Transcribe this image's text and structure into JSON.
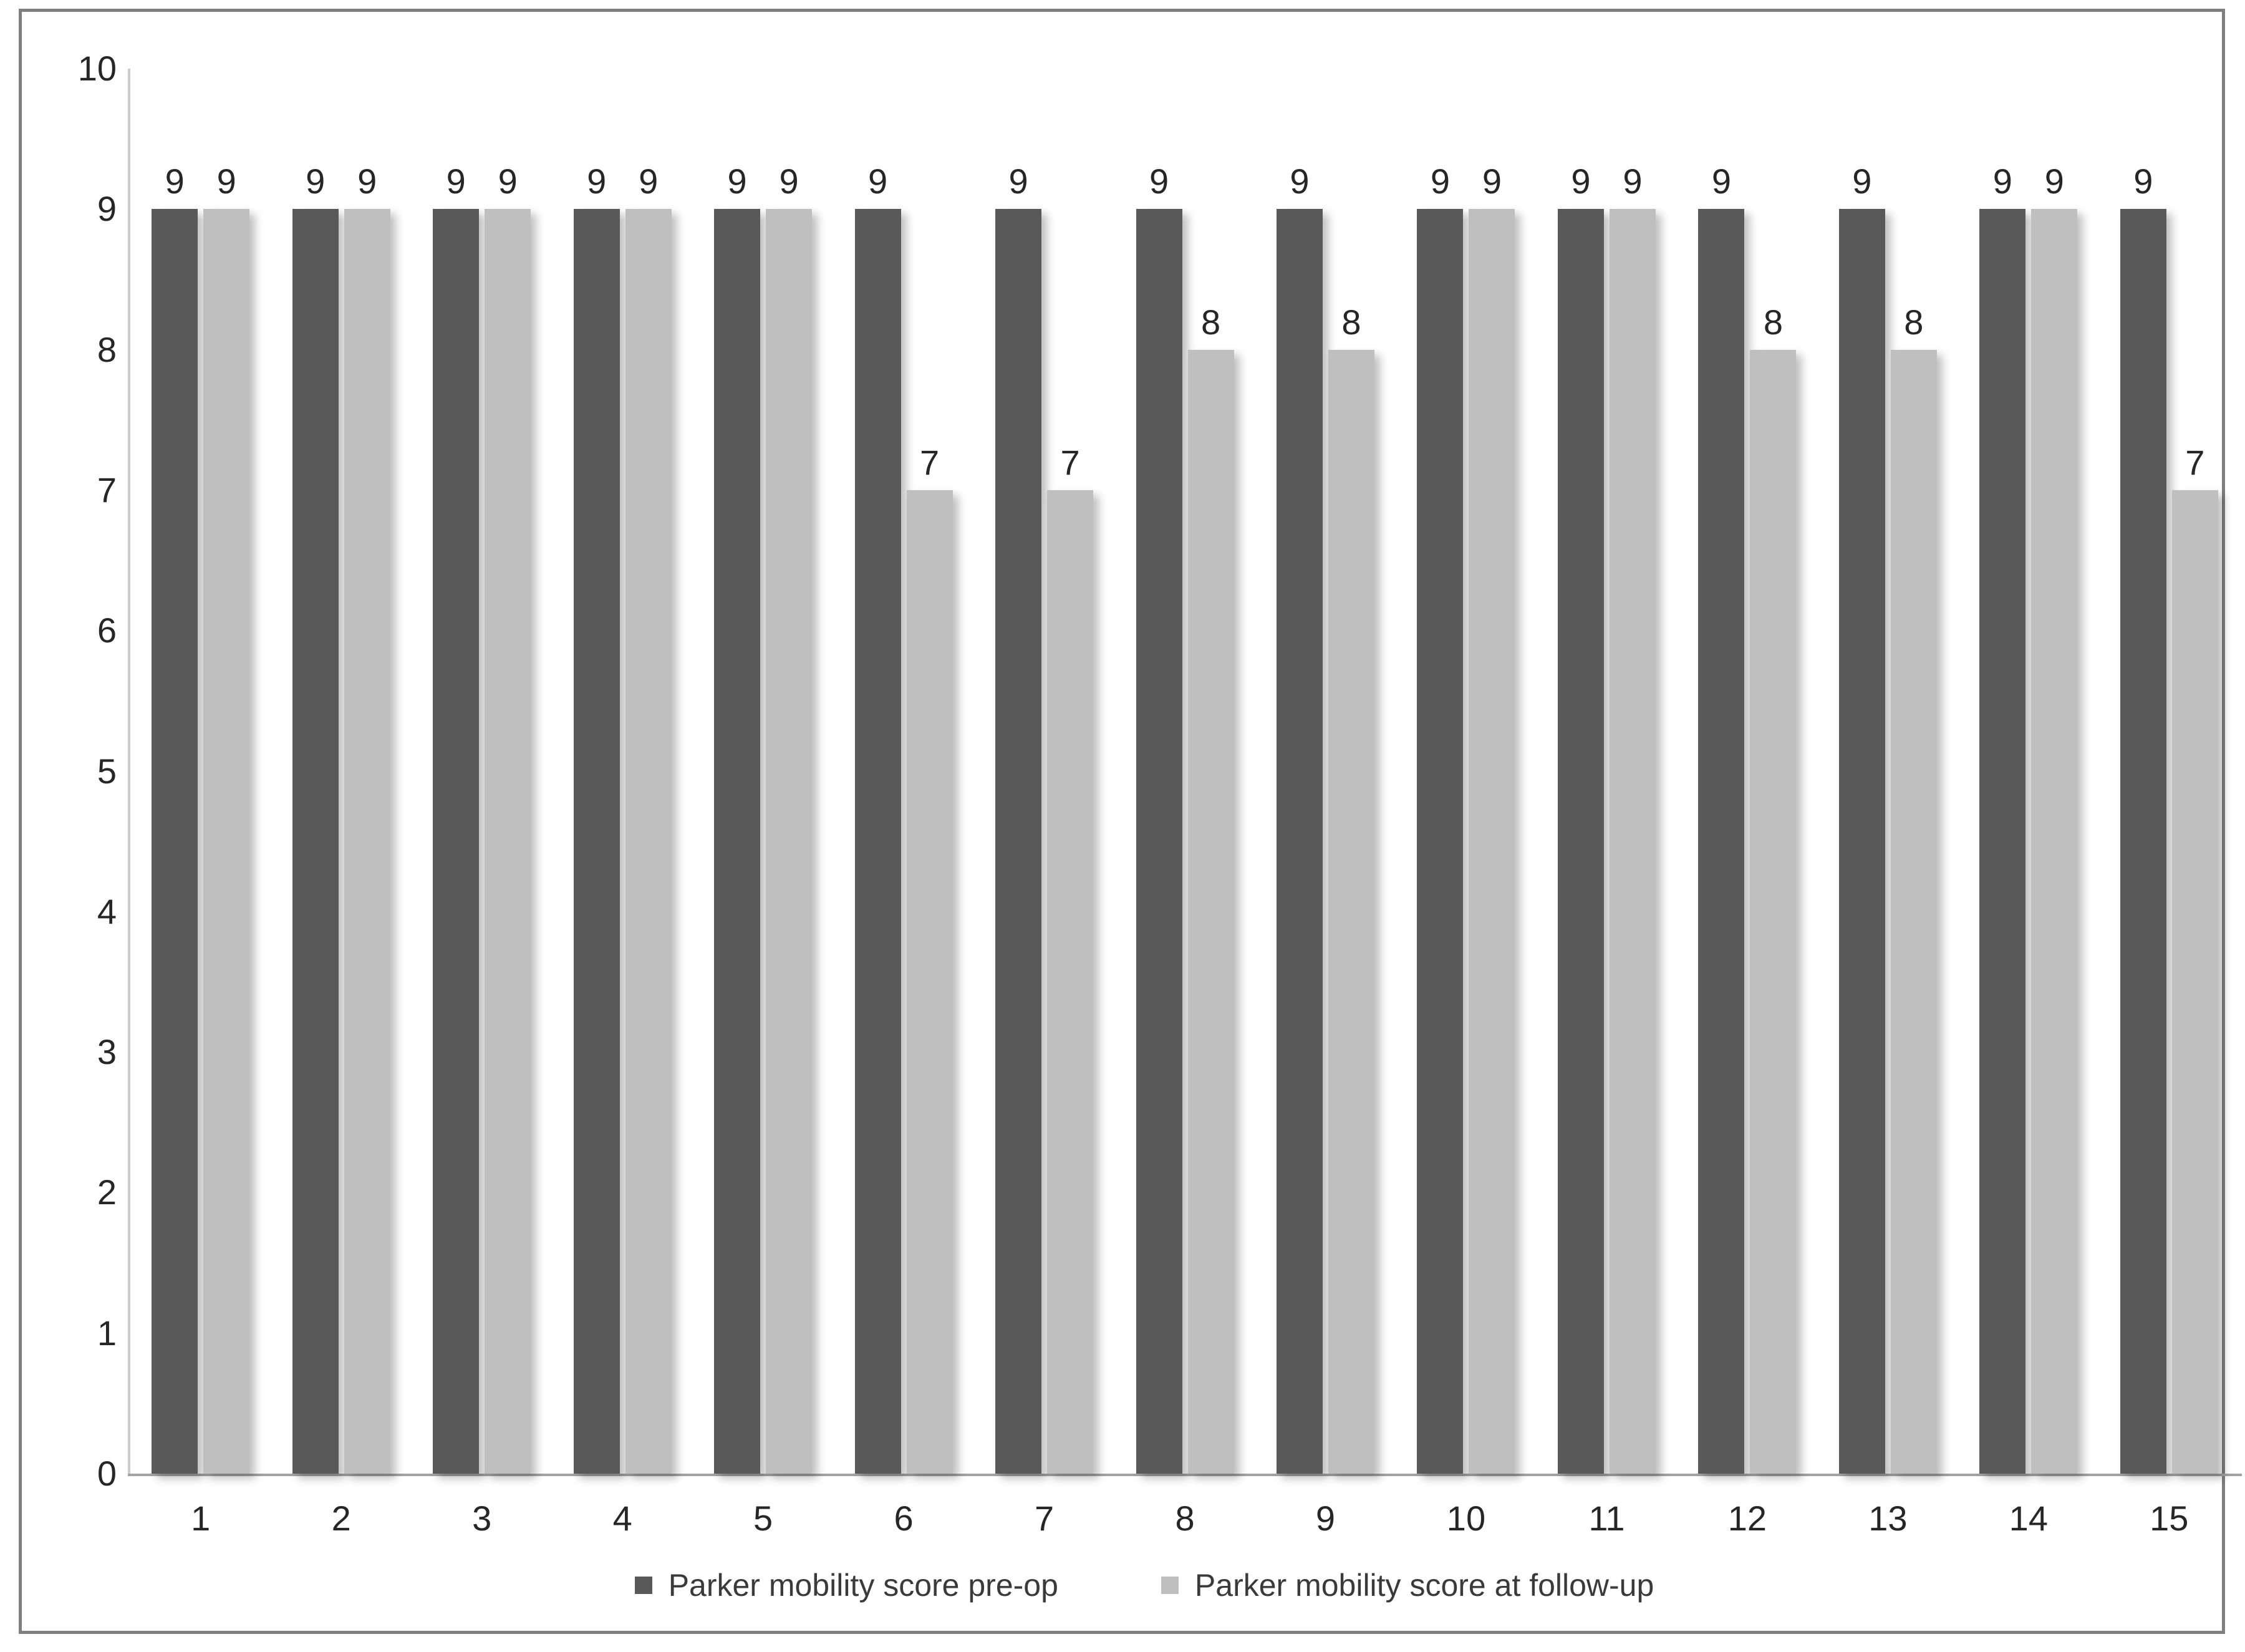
{
  "chart_data": {
    "type": "bar",
    "title": "",
    "xlabel": "",
    "ylabel": "",
    "categories": [
      "1",
      "2",
      "3",
      "4",
      "5",
      "6",
      "7",
      "8",
      "9",
      "10",
      "11",
      "12",
      "13",
      "14",
      "15"
    ],
    "series": [
      {
        "name": "Parker mobility score pre-op",
        "color": "#595959",
        "values": [
          9,
          9,
          9,
          9,
          9,
          9,
          9,
          9,
          9,
          9,
          9,
          9,
          9,
          9,
          9
        ]
      },
      {
        "name": "Parker mobility score at follow-up",
        "color": "#bfbfbf",
        "values": [
          9,
          9,
          9,
          9,
          9,
          7,
          7,
          8,
          8,
          9,
          9,
          8,
          8,
          9,
          7
        ]
      }
    ],
    "ylim": [
      0,
      10
    ],
    "yticks": [
      0,
      1,
      2,
      3,
      4,
      5,
      6,
      7,
      8,
      9,
      10
    ],
    "grid": false,
    "data_labels": true,
    "legend_position": "bottom"
  },
  "colors": {
    "frame_border": "#7f7f7f",
    "y_axis_line": "#cccccc",
    "x_axis_line": "#a3a3a3",
    "tick_text": "#262626",
    "legend_text": "#3a3a3a",
    "background": "#ffffff"
  }
}
